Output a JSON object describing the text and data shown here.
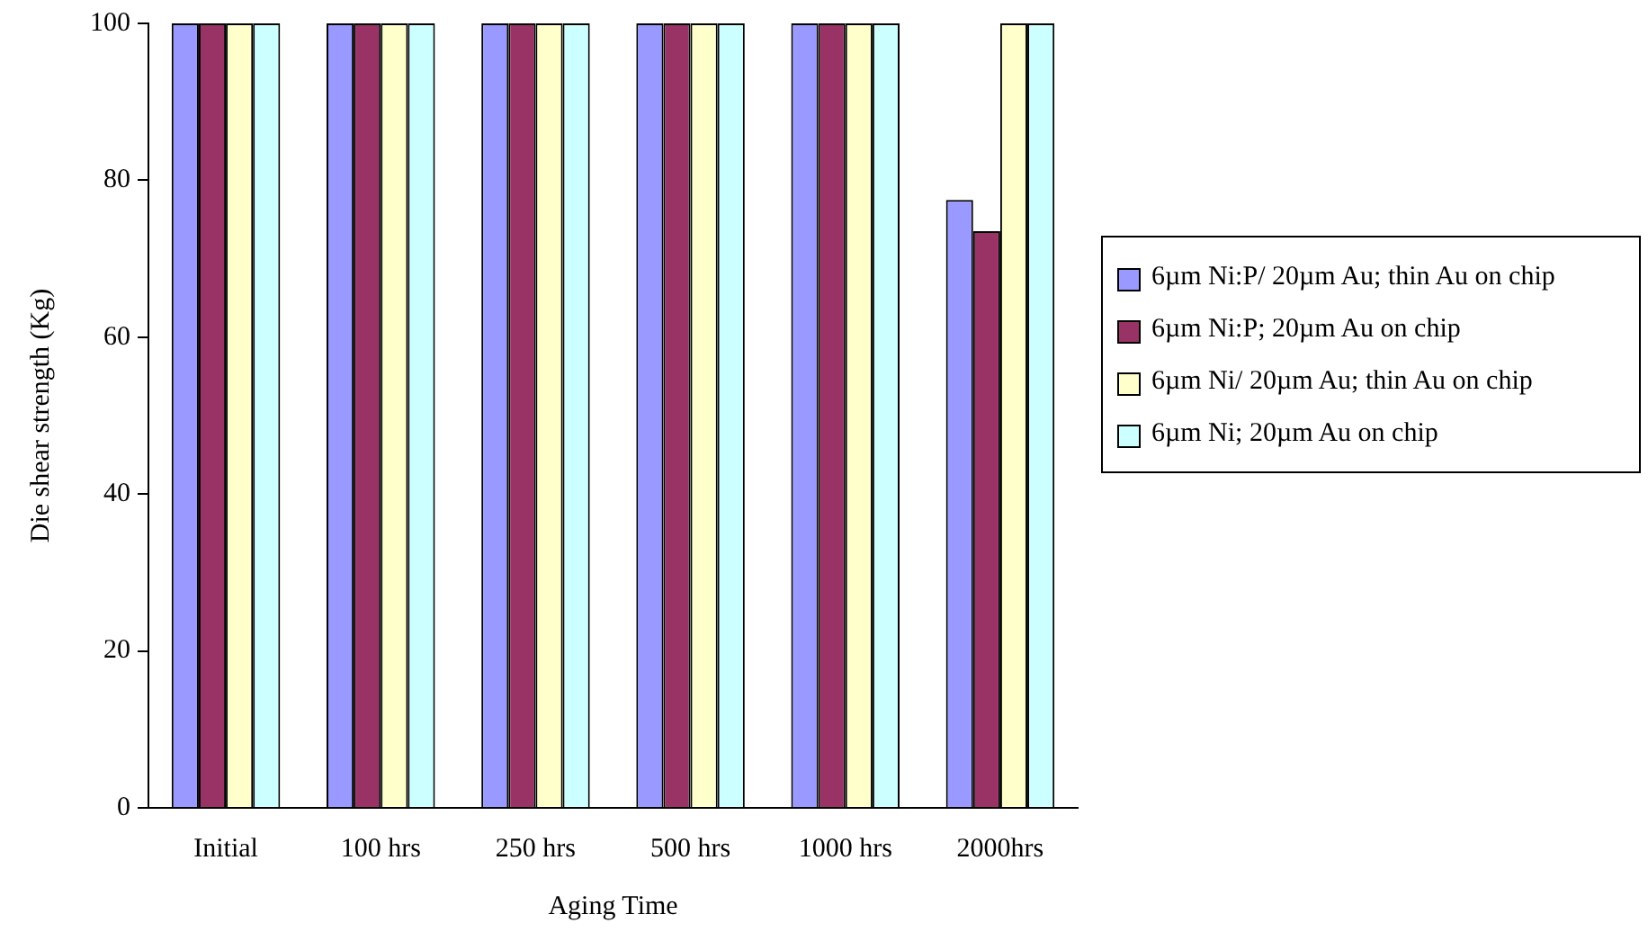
{
  "chart_data": {
    "type": "bar",
    "xlabel": "Aging Time",
    "ylabel": "Die shear strength (Kg)",
    "categories": [
      "Initial",
      "100 hrs",
      "250 hrs",
      "500 hrs",
      "1000 hrs",
      "2000hrs"
    ],
    "series": [
      {
        "name": "6µm Ni:P/ 20µm Au; thin Au on chip",
        "color": "#9999ff",
        "values": [
          100,
          100,
          100,
          100,
          100,
          77.5
        ]
      },
      {
        "name": "6µm Ni:P; 20µm Au on chip",
        "color": "#993366",
        "values": [
          100,
          100,
          100,
          100,
          100,
          73.5
        ]
      },
      {
        "name": "6µm Ni/ 20µm Au; thin Au on chip",
        "color": "#ffffcc",
        "values": [
          100,
          100,
          100,
          100,
          100,
          100
        ]
      },
      {
        "name": "6µm Ni; 20µm Au on chip",
        "color": "#ccffff",
        "values": [
          100,
          100,
          100,
          100,
          100,
          100
        ]
      }
    ],
    "ylim": [
      0,
      100
    ],
    "yticks": [
      0,
      20,
      40,
      60,
      80,
      100
    ],
    "grid": false,
    "legend": "right"
  }
}
